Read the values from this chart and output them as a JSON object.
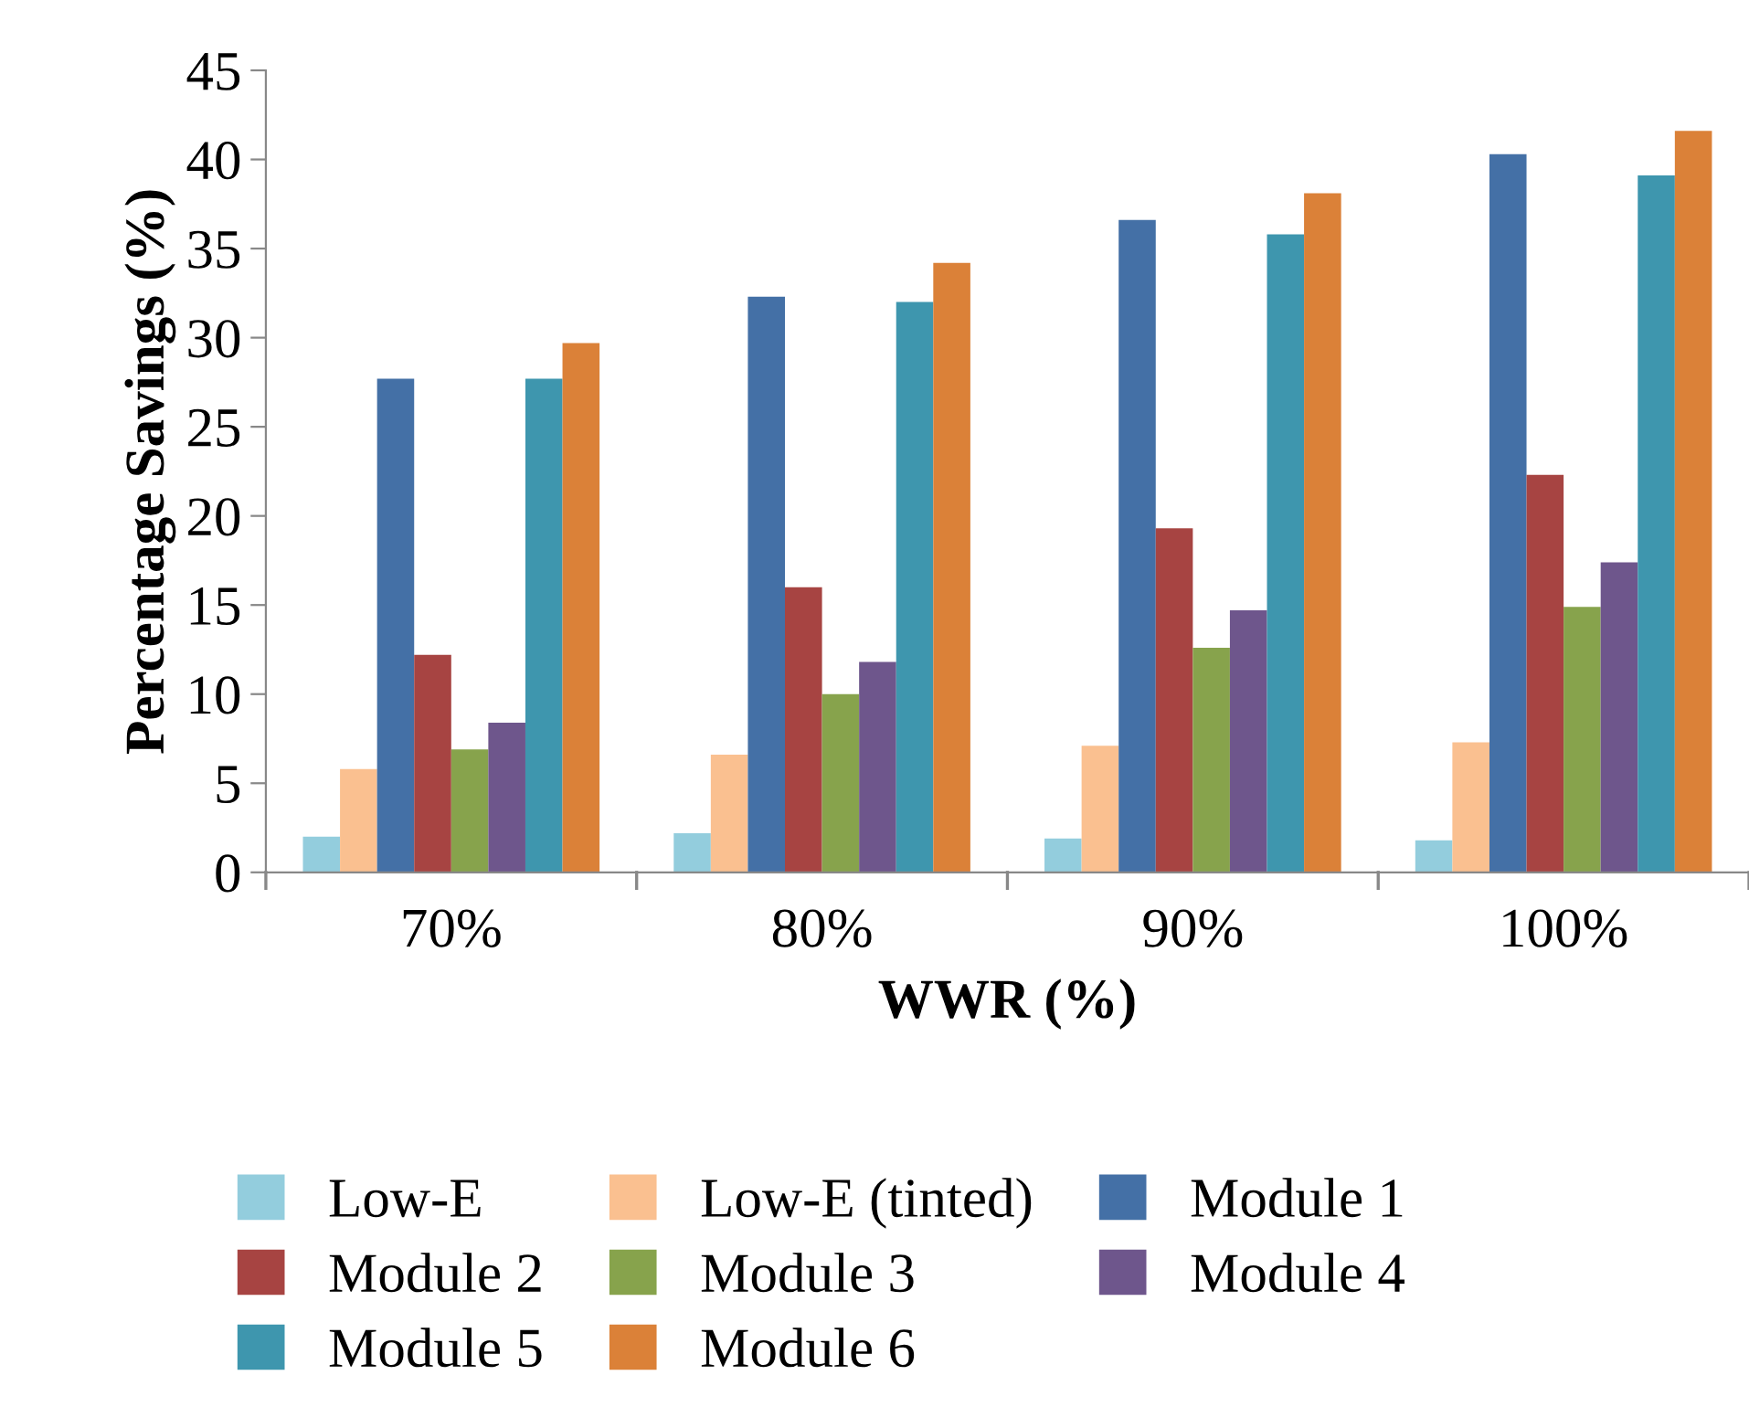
{
  "chart_data": {
    "type": "bar",
    "xlabel": "WWR (%)",
    "ylabel": "Percentage Savings (%)",
    "categories": [
      "70%",
      "80%",
      "90%",
      "100%"
    ],
    "series": [
      {
        "name": "Low-E",
        "color": "#93cddd",
        "values": [
          2.0,
          2.2,
          1.9,
          1.8
        ]
      },
      {
        "name": "Low-E (tinted)",
        "color": "#fac090",
        "values": [
          5.8,
          6.6,
          7.1,
          7.3
        ]
      },
      {
        "name": "Module 1",
        "color": "#4470a6",
        "values": [
          27.7,
          32.3,
          36.6,
          40.3
        ]
      },
      {
        "name": "Module 2",
        "color": "#a74442",
        "values": [
          12.2,
          16.0,
          19.3,
          22.3
        ]
      },
      {
        "name": "Module 3",
        "color": "#87a34c",
        "values": [
          6.9,
          10.0,
          12.6,
          14.9
        ]
      },
      {
        "name": "Module 4",
        "color": "#6e568c",
        "values": [
          8.4,
          11.8,
          14.7,
          17.4
        ]
      },
      {
        "name": "Module 5",
        "color": "#3e96ae",
        "values": [
          27.7,
          32.0,
          35.8,
          39.1
        ]
      },
      {
        "name": "Module 6",
        "color": "#db8138",
        "values": [
          29.7,
          34.2,
          38.1,
          41.6
        ]
      }
    ],
    "ylim": [
      0,
      45
    ],
    "yticks": [
      0,
      5,
      10,
      15,
      20,
      25,
      30,
      35,
      40,
      45
    ],
    "grid": false,
    "legend": "bottom"
  }
}
